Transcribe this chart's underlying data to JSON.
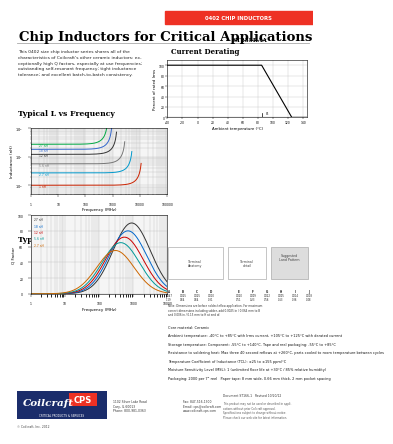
{
  "title_main": "Chip Inductors for Critical Applications",
  "title_sub": "ST235RAA",
  "header_tag": "0402 CHIP INDUCTORS",
  "header_bg": "#ee3124",
  "header_text_color": "#ffffff",
  "body_bg": "#ffffff",
  "section1_title": "Typical L vs Frequency",
  "section2_title": "Typical Q vs Frequency",
  "section3_title": "Current Derating",
  "line_colors_L": [
    "#00aa44",
    "#3366cc",
    "#333333",
    "#777777",
    "#0099cc",
    "#cc2200"
  ],
  "line_colors_Q": [
    "#333333",
    "#0066cc",
    "#cc0000",
    "#009999",
    "#cc6600"
  ],
  "grid_color": "#bbbbbb",
  "divider_color": "#aaaaaa",
  "desc_lines": [
    "This 0402 size chip inductor series shares all of the",
    "characteristics of Coilcraft's other ceramic inductors: ex-",
    "ceptionally high Q factors, especially at use frequencies;",
    "outstanding self-resonant frequency; tight inductance",
    "tolerance; and excellent batch-to-batch consistency."
  ],
  "spec_lines": [
    [
      "Core material: ",
      "Ceramic"
    ],
    [
      "Ambient temperature: ",
      "-40°C to +85°C with Irms current, +105°C to +125°C with derated current"
    ],
    [
      "Storage temperature: ",
      "Component: -55°C to +140°C. Tape and reel packaging: -55°C to +85°C"
    ],
    [
      "Resistance to soldering heat: ",
      "Max three 40 second reflows at +260°C, parts cooled to room temperature between cycles"
    ],
    [
      "Temperature Coefficient of Inductance (TCL): ",
      "±25 to ±155 ppm/°C"
    ],
    [
      "Moisture Sensitivity Level (MSL): ",
      "1 (unlimited floor life at +30°C / 85% relative humidity)"
    ],
    [
      "Packaging: ",
      "2000 per 7\" reel   Paper tape: 8 mm wide, 0.66 mm thick, 2 mm pocket spacing"
    ]
  ],
  "footer_doc": "Document ST166-1   Revised 10/20/12",
  "footer_addr": "1102 Silver Lake Road\nCary, IL 60013\nPhone: 800-981-0363",
  "footer_contact": "Fax: 847-516-1300\nEmail: cps@coilcraft.com\nwww.coilcraft-cps.com",
  "footer_fine": "This product may not be used or described in appli-\ncations without prior Coilcraft approval.\nSpecifications subject to change without notice.\nPlease check our web site for latest information.",
  "copyright": "© Coilcraft, Inc. 2012"
}
